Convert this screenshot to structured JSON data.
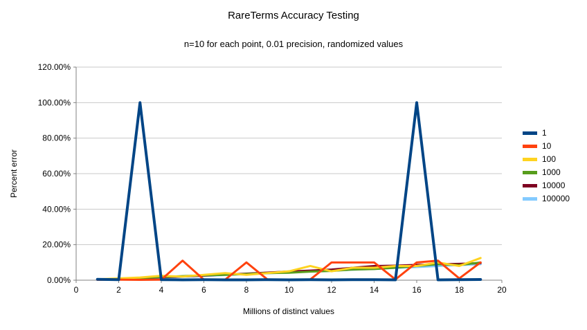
{
  "chart_data": {
    "type": "line",
    "title": "RareTerms Accuracy Testing",
    "subtitle": "n=10 for each point, 0.01 precision, randomized values",
    "xlabel": "Millions of distinct values",
    "ylabel": "Percent error",
    "xlim": [
      0,
      20
    ],
    "ylim": [
      0,
      120
    ],
    "grid": true,
    "legend_position": "right",
    "x_ticks": [
      0,
      2,
      4,
      6,
      8,
      10,
      12,
      14,
      16,
      18,
      20
    ],
    "x_tick_labels": [
      "0",
      "2",
      "4",
      "6",
      "8",
      "10",
      "12",
      "14",
      "16",
      "18",
      "20"
    ],
    "y_ticks": [
      0,
      20,
      40,
      60,
      80,
      100,
      120
    ],
    "y_tick_labels": [
      "0.00%",
      "20.00%",
      "40.00%",
      "60.00%",
      "80.00%",
      "100.00%",
      "120.00%"
    ],
    "x": [
      1,
      2,
      3,
      4,
      5,
      6,
      7,
      8,
      9,
      10,
      11,
      12,
      13,
      14,
      15,
      16,
      17,
      18,
      19
    ],
    "series": [
      {
        "name": "1",
        "color": "#004586",
        "width": 4,
        "values": [
          0.5,
          0.3,
          100,
          0.3,
          0.2,
          0.3,
          0.2,
          0.2,
          0.3,
          0.2,
          0.3,
          0.2,
          0.3,
          0.3,
          0.2,
          100,
          0.2,
          0.3,
          0.4
        ]
      },
      {
        "name": "10",
        "color": "#ff420e",
        "width": 3,
        "values": [
          0.2,
          0.3,
          0.2,
          0.3,
          11,
          0.3,
          0.3,
          10,
          0.3,
          0.4,
          0.4,
          10,
          10,
          10,
          0.4,
          10,
          11,
          1,
          10
        ]
      },
      {
        "name": "100",
        "color": "#ffd320",
        "width": 3,
        "values": [
          0.5,
          1,
          1.5,
          2.5,
          2,
          3,
          4,
          3,
          4,
          5,
          8,
          5,
          7,
          7,
          8,
          8,
          10,
          8,
          12.5
        ]
      },
      {
        "name": "1000",
        "color": "#579d1c",
        "width": 3,
        "values": [
          0.4,
          0.8,
          1.2,
          1.8,
          2.3,
          2.8,
          3,
          3.5,
          4,
          4.2,
          4.8,
          5.2,
          6,
          6.3,
          7,
          8,
          9,
          8.5,
          10
        ]
      },
      {
        "name": "10000",
        "color": "#7e0021",
        "width": 3,
        "values": [
          0.3,
          0.7,
          1.1,
          1.6,
          2.1,
          2.6,
          3.1,
          3.7,
          4.3,
          4.9,
          5.4,
          6,
          7,
          8,
          8.2,
          8.6,
          9,
          9.2,
          9.6
        ]
      },
      {
        "name": "100000",
        "color": "#83caff",
        "width": 3,
        "values": [
          0.3,
          0.6,
          1,
          1.4,
          1.9,
          2.4,
          2.9,
          3.4,
          3.9,
          4.4,
          4.9,
          5.4,
          5.9,
          6.4,
          6.9,
          7.4,
          8,
          8.5,
          9
        ]
      }
    ],
    "colors": {
      "grid": "#c8c8c8",
      "axis": "#808080",
      "text": "#000000",
      "background": "#ffffff"
    }
  }
}
